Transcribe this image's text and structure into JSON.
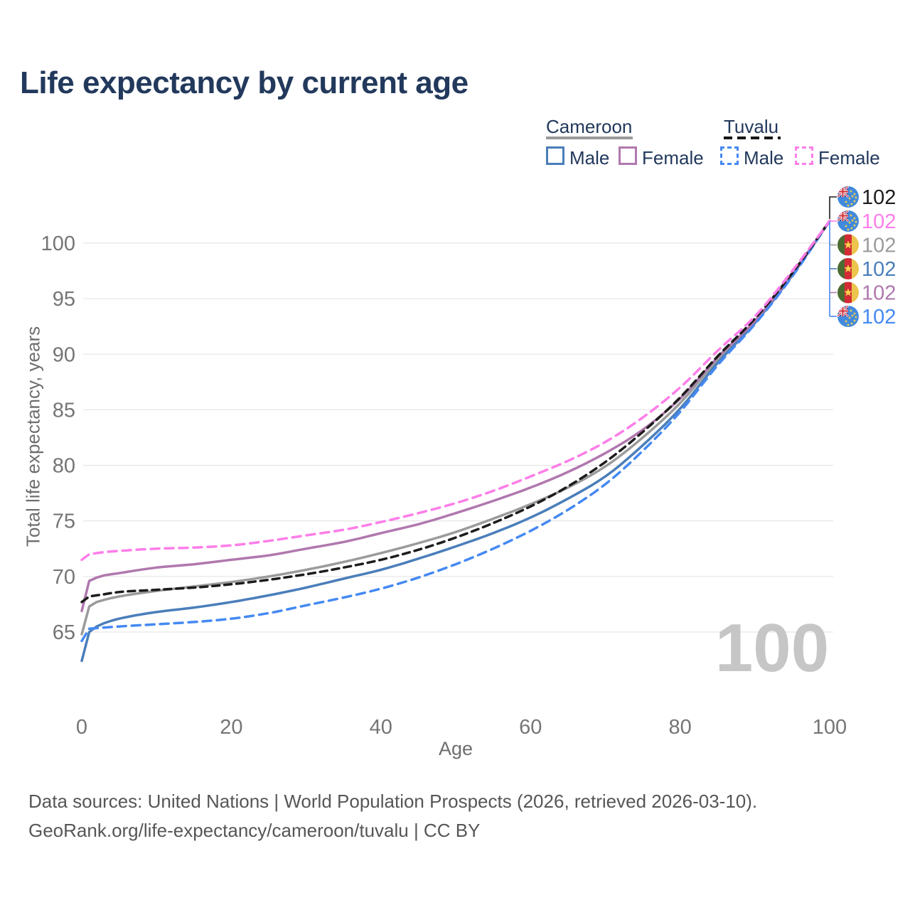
{
  "header": {
    "title": "Life expectancy by current age"
  },
  "legend": {
    "groups": [
      {
        "name": "Cameroon",
        "line_style": "solid",
        "underline_color": "#9a9a9a",
        "items": [
          {
            "label": "Male",
            "color": "#4a7eba",
            "dashed": false
          },
          {
            "label": "Female",
            "color": "#b078ae",
            "dashed": false
          }
        ]
      },
      {
        "name": "Tuvalu",
        "line_style": "dashed",
        "underline_color": "#161616",
        "items": [
          {
            "label": "Male",
            "color": "#4589f2",
            "dashed": true
          },
          {
            "label": "Female",
            "color": "#fd7ee9",
            "dashed": true
          }
        ]
      }
    ]
  },
  "chart_data": {
    "type": "line",
    "title": "Life expectancy by current age",
    "xlabel": "Age",
    "ylabel": "Total life expectancy, years",
    "x_ticks": [
      0,
      20,
      40,
      60,
      80,
      100
    ],
    "y_ticks": [
      65,
      70,
      75,
      80,
      85,
      90,
      95,
      100
    ],
    "xlim": [
      0,
      100
    ],
    "ylim": [
      62,
      103
    ],
    "grid": "horizontal",
    "legend_position": "top-right",
    "watermark": "100",
    "x": [
      0,
      1,
      2,
      3,
      5,
      10,
      15,
      20,
      25,
      30,
      35,
      40,
      45,
      50,
      55,
      60,
      65,
      70,
      75,
      80,
      85,
      90,
      95,
      100
    ],
    "series": [
      {
        "name": "Cameroon total",
        "country": "cameroon",
        "group": "total",
        "color": "#9b9b9b",
        "dashed": false,
        "values": [
          64.8,
          67.3,
          67.7,
          67.9,
          68.2,
          68.7,
          69.1,
          69.5,
          70.0,
          70.6,
          71.3,
          72.1,
          73.0,
          74.0,
          75.2,
          76.5,
          78.0,
          79.9,
          82.5,
          85.6,
          89.5,
          92.9,
          97.2,
          102
        ]
      },
      {
        "name": "Cameroon male",
        "country": "cameroon",
        "group": "male",
        "color": "#4a7eba",
        "dashed": false,
        "values": [
          62.4,
          65.0,
          65.5,
          65.8,
          66.2,
          66.8,
          67.2,
          67.7,
          68.3,
          69.0,
          69.8,
          70.6,
          71.6,
          72.7,
          73.9,
          75.3,
          77.0,
          79.0,
          81.8,
          85.1,
          89.2,
          92.8,
          97.1,
          102
        ]
      },
      {
        "name": "Cameroon female",
        "country": "cameroon",
        "group": "female",
        "color": "#b078ae",
        "dashed": false,
        "values": [
          66.9,
          69.6,
          69.9,
          70.1,
          70.3,
          70.8,
          71.1,
          71.5,
          71.9,
          72.5,
          73.1,
          73.9,
          74.7,
          75.7,
          76.8,
          78.0,
          79.4,
          81.1,
          83.2,
          86.0,
          89.7,
          93.0,
          97.2,
          102
        ]
      },
      {
        "name": "Tuvalu male",
        "country": "tuvalu",
        "group": "male",
        "color": "#4589f2",
        "dashed": true,
        "values": [
          64.2,
          65.3,
          65.35,
          65.4,
          65.5,
          65.7,
          65.9,
          66.2,
          66.7,
          67.4,
          68.1,
          68.9,
          69.9,
          71.1,
          72.5,
          74.1,
          76.0,
          78.3,
          81.3,
          84.8,
          89.0,
          92.7,
          97.0,
          102
        ]
      },
      {
        "name": "Tuvalu total",
        "country": "tuvalu",
        "group": "total",
        "color": "#1c1c1c",
        "dashed": true,
        "values": [
          67.7,
          68.2,
          68.3,
          68.4,
          68.6,
          68.8,
          69.0,
          69.3,
          69.7,
          70.2,
          70.8,
          71.5,
          72.4,
          73.5,
          74.8,
          76.3,
          78.1,
          80.3,
          83.0,
          86.1,
          89.8,
          93.2,
          97.3,
          102
        ]
      },
      {
        "name": "Tuvalu female",
        "country": "tuvalu",
        "group": "female",
        "color": "#fd7ee9",
        "dashed": true,
        "values": [
          71.5,
          72.0,
          72.1,
          72.2,
          72.3,
          72.5,
          72.6,
          72.8,
          73.2,
          73.7,
          74.2,
          74.9,
          75.7,
          76.6,
          77.7,
          79.0,
          80.4,
          82.1,
          84.3,
          87.0,
          90.3,
          93.4,
          97.5,
          102
        ]
      }
    ],
    "end_labels": [
      {
        "value": "102",
        "flag": "tuvalu",
        "color": "#1c1c1c"
      },
      {
        "value": "102",
        "flag": "tuvalu",
        "color": "#fd7ee9"
      },
      {
        "value": "102",
        "flag": "cameroon",
        "color": "#9b9b9b"
      },
      {
        "value": "102",
        "flag": "cameroon",
        "color": "#4a7eba"
      },
      {
        "value": "102",
        "flag": "cameroon",
        "color": "#b078ae"
      },
      {
        "value": "102",
        "flag": "tuvalu",
        "color": "#4589f2"
      }
    ],
    "colors": {
      "grid": "#e7e7e7",
      "tick_text": "#757575",
      "watermark": "#c6c6c6",
      "title_text": "#22395c",
      "flag_tuvalu_bg": "#4189dd",
      "flag_tuvalu_canton": "#39418e",
      "flag_star": "#f6d34b",
      "flag_cameroon_green": "#4c6b31",
      "flag_cameroon_red": "#d32b35",
      "flag_cameroon_yellow": "#ecc44d"
    }
  },
  "footer": {
    "line1": "Data sources: United Nations | World Population Prospects (2026, retrieved 2026-03-10).",
    "line2": "GeoRank.org/life-expectancy/cameroon/tuvalu | CC BY"
  }
}
